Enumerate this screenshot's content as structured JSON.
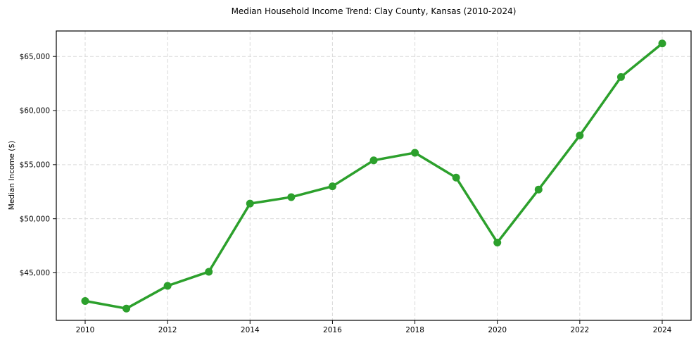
{
  "chart_data": {
    "type": "line",
    "title": "Median Household Income Trend: Clay County, Kansas (2010-2024)",
    "xlabel": "",
    "ylabel": "Median Income ($)",
    "x": [
      2010,
      2011,
      2012,
      2013,
      2014,
      2015,
      2016,
      2017,
      2018,
      2019,
      2020,
      2021,
      2022,
      2023,
      2024
    ],
    "values": [
      42400,
      41700,
      43800,
      45100,
      51400,
      52000,
      53000,
      55400,
      56100,
      53800,
      47800,
      52700,
      57700,
      63100,
      66200
    ],
    "xlim": [
      2009.3,
      2024.7
    ],
    "ylim": [
      40607,
      67356
    ],
    "x_ticks": [
      2010,
      2012,
      2014,
      2016,
      2018,
      2020,
      2022,
      2024
    ],
    "x_tick_labels": [
      "2010",
      "2012",
      "2014",
      "2016",
      "2018",
      "2020",
      "2022",
      "2024"
    ],
    "y_ticks": [
      45000,
      50000,
      55000,
      60000,
      65000
    ],
    "y_tick_labels": [
      "$45,000",
      "$50,000",
      "$55,000",
      "$60,000",
      "$65,000"
    ],
    "grid": true,
    "legend_position": "none",
    "line_color": "#2ca02c",
    "grid_color": "#d9d9d9",
    "frame_color": "#000000",
    "text_color": "#000000",
    "line_width": 3.5,
    "marker": "circle",
    "marker_radius": 5.5
  }
}
